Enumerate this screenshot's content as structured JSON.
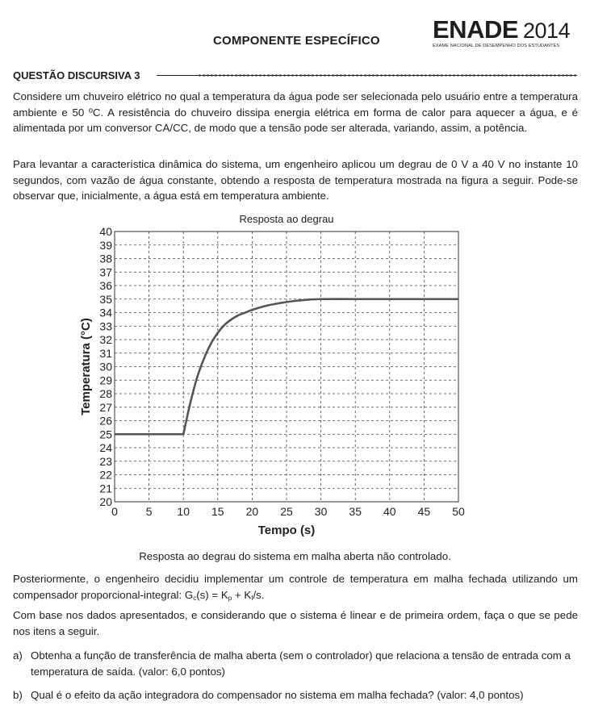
{
  "header": {
    "section": "COMPONENTE ESPECÍFICO",
    "brand_main": "ENADE",
    "brand_year": "2014",
    "brand_subtitle": "EXAME NACIONAL DE DESEMPENHO DOS ESTUDANTES"
  },
  "question": {
    "title": "QUESTÃO DISCURSIVA 3",
    "para1": "Considere um chuveiro elétrico no qual a temperatura da água pode ser selecionada pelo usuário entre a temperatura ambiente e 50 ºC. A resistência do chuveiro dissipa energia elétrica em forma de calor para aquecer a água, e é alimentada por um conversor CA/CC, de modo que a tensão pode ser alterada, variando, assim, a potência.",
    "para2": "Para levantar a característica dinâmica do sistema, um engenheiro aplicou um degrau de 0 V a 40 V no instante 10 segundos, com vazão de água constante, obtendo a resposta de temperatura mostrada na figura a seguir. Pode-se observar que, inicialmente, a água está em temperatura ambiente.",
    "caption": "Resposta ao degrau do sistema em malha aberta não controlado.",
    "para3_prefix": "Posteriormente, o engenheiro decidiu implementar um controle de temperatura em malha fechada utilizando um compensador proporcional-integral: G",
    "para3_sub_c": "c",
    "para3_mid1": "(s) = K",
    "para3_sub_p": "p",
    "para3_mid2": " + K",
    "para3_sub_i": "I",
    "para3_suffix": "/s.",
    "para4": "Com base nos dados apresentados, e considerando que o sistema é linear e de primeira ordem, faça o que se pede nos itens a seguir.",
    "item_a_label": "a)",
    "item_a": "Obtenha a função de transferência de malha aberta (sem o controlador) que relaciona a tensão de entrada com a temperatura de saída. (valor: 6,0 pontos)",
    "item_b_label": "b)",
    "item_b": "Qual é o efeito da ação integradora do compensador no sistema em malha fechada? (valor: 4,0 pontos)"
  },
  "chart_data": {
    "type": "line",
    "title": "Resposta ao degrau",
    "xlabel": "Tempo (s)",
    "ylabel": "Temperatura (°C)",
    "xlim": [
      0,
      50
    ],
    "ylim": [
      20,
      40
    ],
    "xticks": [
      "0",
      "5",
      "10",
      "15",
      "20",
      "25",
      "30",
      "35",
      "40",
      "45",
      "50"
    ],
    "yticks": [
      "20",
      "21",
      "22",
      "23",
      "24",
      "25",
      "26",
      "27",
      "28",
      "29",
      "30",
      "31",
      "32",
      "33",
      "34",
      "35",
      "36",
      "37",
      "38",
      "39",
      "40"
    ],
    "grid": true,
    "series": [
      {
        "x": [
          0,
          10,
          11,
          12,
          13,
          14,
          15,
          16,
          17,
          18,
          19,
          20,
          22,
          24,
          26,
          28,
          30,
          35,
          40,
          45,
          50
        ],
        "y": [
          25,
          25,
          27.3,
          29.2,
          30.6,
          31.7,
          32.5,
          33.1,
          33.5,
          33.8,
          34.0,
          34.2,
          34.5,
          34.7,
          34.85,
          34.95,
          35,
          35,
          35,
          35,
          35
        ]
      }
    ],
    "line_color": "#555555"
  }
}
